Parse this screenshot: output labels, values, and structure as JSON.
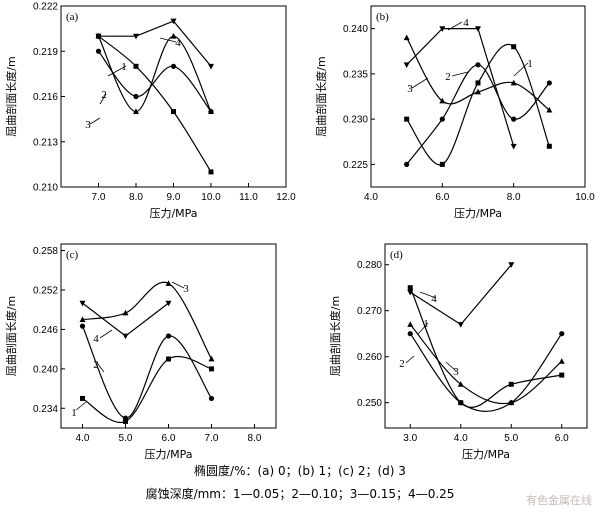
{
  "caption_line1": "椭圆度/%：(a) 0；(b) 1；(c) 2；(d) 3",
  "caption_line2": "腐蚀深度/mm：1—0.05；2—0.10；3—0.15；4—0.25",
  "watermark": "有色金属在线",
  "chart_data": [
    {
      "type": "line",
      "panel_label": "(a)",
      "xlabel": "压力/MPa",
      "ylabel": "屈曲剖面长度/m",
      "xlim": [
        6.0,
        12.0
      ],
      "ylim": [
        0.21,
        0.222
      ],
      "xticks": [
        7.0,
        8.0,
        9.0,
        10.0,
        11.0,
        12.0
      ],
      "xtick_labels": [
        "7.0",
        "8.0",
        "9.0",
        "10.0",
        "11.0",
        "12.0"
      ],
      "yticks": [
        0.21,
        0.213,
        0.216,
        0.219,
        0.222
      ],
      "ytick_labels": [
        "0.210",
        "0.213",
        "0.216",
        "0.219",
        "0.222"
      ],
      "series": [
        {
          "name": "1",
          "marker": "square",
          "x": [
            7,
            8,
            9,
            10
          ],
          "y": [
            0.22,
            0.218,
            0.215,
            0.211
          ]
        },
        {
          "name": "2",
          "marker": "circle",
          "x": [
            7,
            8,
            9,
            10
          ],
          "y": [
            0.219,
            0.216,
            0.218,
            0.215
          ]
        },
        {
          "name": "3",
          "marker": "triangle-up",
          "x": [
            7,
            8,
            9,
            10
          ],
          "y": [
            0.22,
            0.215,
            0.22,
            0.215
          ]
        },
        {
          "name": "4",
          "marker": "triangle-down",
          "x": [
            7,
            8,
            9,
            10
          ],
          "y": [
            0.22,
            0.22,
            0.221,
            0.218
          ]
        }
      ]
    },
    {
      "type": "line",
      "panel_label": "(b)",
      "xlabel": "压力/MPa",
      "ylabel": "屈曲剖面长度/m",
      "xlim": [
        4.0,
        10.0
      ],
      "ylim": [
        0.2225,
        0.2425
      ],
      "xticks": [
        4.0,
        6.0,
        8.0,
        10.0
      ],
      "xtick_labels": [
        "4.0",
        "6.0",
        "8.0",
        "10.0"
      ],
      "yticks": [
        0.225,
        0.23,
        0.235,
        0.24
      ],
      "ytick_labels": [
        "0.225",
        "0.230",
        "0.235",
        "0.240"
      ],
      "series": [
        {
          "name": "1",
          "marker": "square",
          "x": [
            5,
            6,
            7,
            8,
            9
          ],
          "y": [
            0.23,
            0.225,
            0.234,
            0.238,
            0.227
          ]
        },
        {
          "name": "2",
          "marker": "circle",
          "x": [
            5,
            6,
            7,
            8,
            9
          ],
          "y": [
            0.225,
            0.23,
            0.236,
            0.23,
            0.234
          ]
        },
        {
          "name": "3",
          "marker": "triangle-up",
          "x": [
            5,
            6,
            7,
            8,
            9
          ],
          "y": [
            0.239,
            0.232,
            0.233,
            0.234,
            0.231
          ]
        },
        {
          "name": "4",
          "marker": "triangle-down",
          "x": [
            5,
            6,
            7,
            8
          ],
          "y": [
            0.236,
            0.24,
            0.24,
            0.227
          ]
        }
      ]
    },
    {
      "type": "line",
      "panel_label": "(c)",
      "xlabel": "压力/MPa",
      "ylabel": "屈曲剖面长度/m",
      "xlim": [
        3.5,
        8.5
      ],
      "ylim": [
        0.231,
        0.259
      ],
      "xticks": [
        4.0,
        5.0,
        6.0,
        7.0,
        8.0
      ],
      "xtick_labels": [
        "4.0",
        "5.0",
        "6.0",
        "7.0",
        "8.0"
      ],
      "yticks": [
        0.234,
        0.24,
        0.246,
        0.252,
        0.258
      ],
      "ytick_labels": [
        "0.234",
        "0.240",
        "0.246",
        "0.252",
        "0.258"
      ],
      "series": [
        {
          "name": "1",
          "marker": "square",
          "x": [
            4,
            5,
            6,
            7
          ],
          "y": [
            0.2355,
            0.232,
            0.2415,
            0.24
          ]
        },
        {
          "name": "2",
          "marker": "circle",
          "x": [
            4,
            5,
            6,
            7
          ],
          "y": [
            0.2465,
            0.2325,
            0.245,
            0.2355
          ]
        },
        {
          "name": "3",
          "marker": "triangle-up",
          "x": [
            4,
            5,
            6,
            7
          ],
          "y": [
            0.2475,
            0.2485,
            0.253,
            0.2415
          ]
        },
        {
          "name": "4",
          "marker": "triangle-down",
          "x": [
            4,
            5,
            6
          ],
          "y": [
            0.25,
            0.245,
            0.25
          ]
        }
      ]
    },
    {
      "type": "line",
      "panel_label": "(d)",
      "xlabel": "压力/MPa",
      "ylabel": "屈曲剖面长度/m",
      "xlim": [
        2.5,
        6.5
      ],
      "ylim": [
        0.2445,
        0.2845
      ],
      "xticks": [
        3.0,
        4.0,
        5.0,
        6.0
      ],
      "xtick_labels": [
        "3.0",
        "4.0",
        "5.0",
        "6.0"
      ],
      "yticks": [
        0.25,
        0.26,
        0.27,
        0.28
      ],
      "ytick_labels": [
        "0.250",
        "0.260",
        "0.270",
        "0.280"
      ],
      "series": [
        {
          "name": "1",
          "marker": "square",
          "x": [
            3,
            4,
            5,
            6
          ],
          "y": [
            0.275,
            0.25,
            0.254,
            0.256
          ]
        },
        {
          "name": "2",
          "marker": "circle",
          "x": [
            3,
            4,
            5,
            6
          ],
          "y": [
            0.265,
            0.25,
            0.25,
            0.265
          ]
        },
        {
          "name": "3",
          "marker": "triangle-up",
          "x": [
            3,
            4,
            5,
            6
          ],
          "y": [
            0.267,
            0.254,
            0.25,
            0.259
          ]
        },
        {
          "name": "4",
          "marker": "triangle-down",
          "x": [
            3,
            4,
            5
          ],
          "y": [
            0.274,
            0.267,
            0.28
          ]
        }
      ]
    }
  ]
}
